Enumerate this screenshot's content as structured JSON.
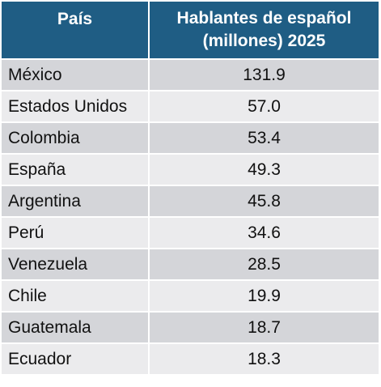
{
  "table": {
    "headers": {
      "country": "País",
      "speakers_line1": "Hablantes de español",
      "speakers_line2": "(millones) 2025"
    },
    "rows": [
      {
        "country": "México",
        "value": "131.9"
      },
      {
        "country": "Estados Unidos",
        "value": "57.0"
      },
      {
        "country": "Colombia",
        "value": "53.4"
      },
      {
        "country": "España",
        "value": "49.3"
      },
      {
        "country": "Argentina",
        "value": "45.8"
      },
      {
        "country": "Perú",
        "value": "34.6"
      },
      {
        "country": "Venezuela",
        "value": "28.5"
      },
      {
        "country": "Chile",
        "value": "19.9"
      },
      {
        "country": "Guatemala",
        "value": "18.7"
      },
      {
        "country": "Ecuador",
        "value": "18.3"
      }
    ]
  },
  "colors": {
    "header_bg": "#1f5d84",
    "row_dark": "#d4d5d9",
    "row_light": "#ebebed"
  }
}
